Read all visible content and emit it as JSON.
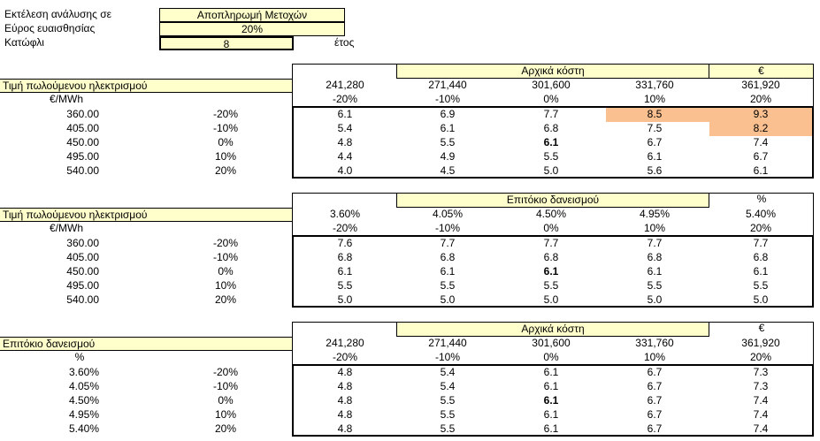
{
  "params": {
    "analysis_label": "Εκτέλεση ανάλυσης σε",
    "analysis_value": "Αποπληρωμή Μετοχών",
    "range_label": "Εύρος ευαισθησίας",
    "range_value": "20%",
    "threshold_label": "Κατώφλι",
    "threshold_value": "8",
    "threshold_unit": "έτος"
  },
  "colors": {
    "yellow": "#ffffcc",
    "highlight": "#fac090"
  },
  "tables": [
    {
      "header": "Αρχικά κόστη",
      "unit": "€",
      "row_title": "Τιμή πωλούμενου ηλεκτρισμού",
      "row_unit": "€/MWh",
      "col_values": [
        "241,280",
        "271,440",
        "301,600",
        "331,760",
        "361,920"
      ],
      "col_pcts": [
        "-20%",
        "-10%",
        "0%",
        "10%",
        "20%"
      ],
      "rows": [
        {
          "value": "360.00",
          "pct": "-20%",
          "cells": [
            "6.1",
            "6.9",
            "7.7",
            "8.5",
            "9.3"
          ]
        },
        {
          "value": "405.00",
          "pct": "-10%",
          "cells": [
            "5.4",
            "6.1",
            "6.8",
            "7.5",
            "8.2"
          ]
        },
        {
          "value": "450.00",
          "pct": "0%",
          "cells": [
            "4.8",
            "5.5",
            "6.1",
            "6.7",
            "7.4"
          ]
        },
        {
          "value": "495.00",
          "pct": "10%",
          "cells": [
            "4.4",
            "4.9",
            "5.5",
            "6.1",
            "6.7"
          ]
        },
        {
          "value": "540.00",
          "pct": "20%",
          "cells": [
            "4.0",
            "4.5",
            "5.0",
            "5.6",
            "6.1"
          ]
        }
      ]
    },
    {
      "header": "Επιτόκιο δανεισμού",
      "unit": "%",
      "row_title": "Τιμή πωλούμενου ηλεκτρισμού",
      "row_unit": "€/MWh",
      "col_values": [
        "3.60%",
        "4.05%",
        "4.50%",
        "4.95%",
        "5.40%"
      ],
      "col_pcts": [
        "-20%",
        "-10%",
        "0%",
        "10%",
        "20%"
      ],
      "rows": [
        {
          "value": "360.00",
          "pct": "-20%",
          "cells": [
            "7.6",
            "7.7",
            "7.7",
            "7.7",
            "7.7"
          ]
        },
        {
          "value": "405.00",
          "pct": "-10%",
          "cells": [
            "6.8",
            "6.8",
            "6.8",
            "6.8",
            "6.8"
          ]
        },
        {
          "value": "450.00",
          "pct": "0%",
          "cells": [
            "6.1",
            "6.1",
            "6.1",
            "6.1",
            "6.1"
          ]
        },
        {
          "value": "495.00",
          "pct": "10%",
          "cells": [
            "5.5",
            "5.5",
            "5.5",
            "5.5",
            "5.5"
          ]
        },
        {
          "value": "540.00",
          "pct": "20%",
          "cells": [
            "5.0",
            "5.0",
            "5.0",
            "5.0",
            "5.0"
          ]
        }
      ]
    },
    {
      "header": "Αρχικά κόστη",
      "unit": "€",
      "row_title": "Επιτόκιο δανεισμού",
      "row_unit": "%",
      "col_values": [
        "241,280",
        "271,440",
        "301,600",
        "331,760",
        "361,920"
      ],
      "col_pcts": [
        "-20%",
        "-10%",
        "0%",
        "10%",
        "20%"
      ],
      "rows": [
        {
          "value": "3.60%",
          "pct": "-20%",
          "cells": [
            "4.8",
            "5.4",
            "6.1",
            "6.7",
            "7.3"
          ]
        },
        {
          "value": "4.05%",
          "pct": "-10%",
          "cells": [
            "4.8",
            "5.4",
            "6.1",
            "6.7",
            "7.3"
          ]
        },
        {
          "value": "4.50%",
          "pct": "0%",
          "cells": [
            "4.8",
            "5.5",
            "6.1",
            "6.7",
            "7.4"
          ]
        },
        {
          "value": "4.95%",
          "pct": "10%",
          "cells": [
            "4.8",
            "5.5",
            "6.1",
            "6.7",
            "7.4"
          ]
        },
        {
          "value": "5.40%",
          "pct": "20%",
          "cells": [
            "4.8",
            "5.5",
            "6.1",
            "6.7",
            "7.4"
          ]
        }
      ]
    }
  ]
}
